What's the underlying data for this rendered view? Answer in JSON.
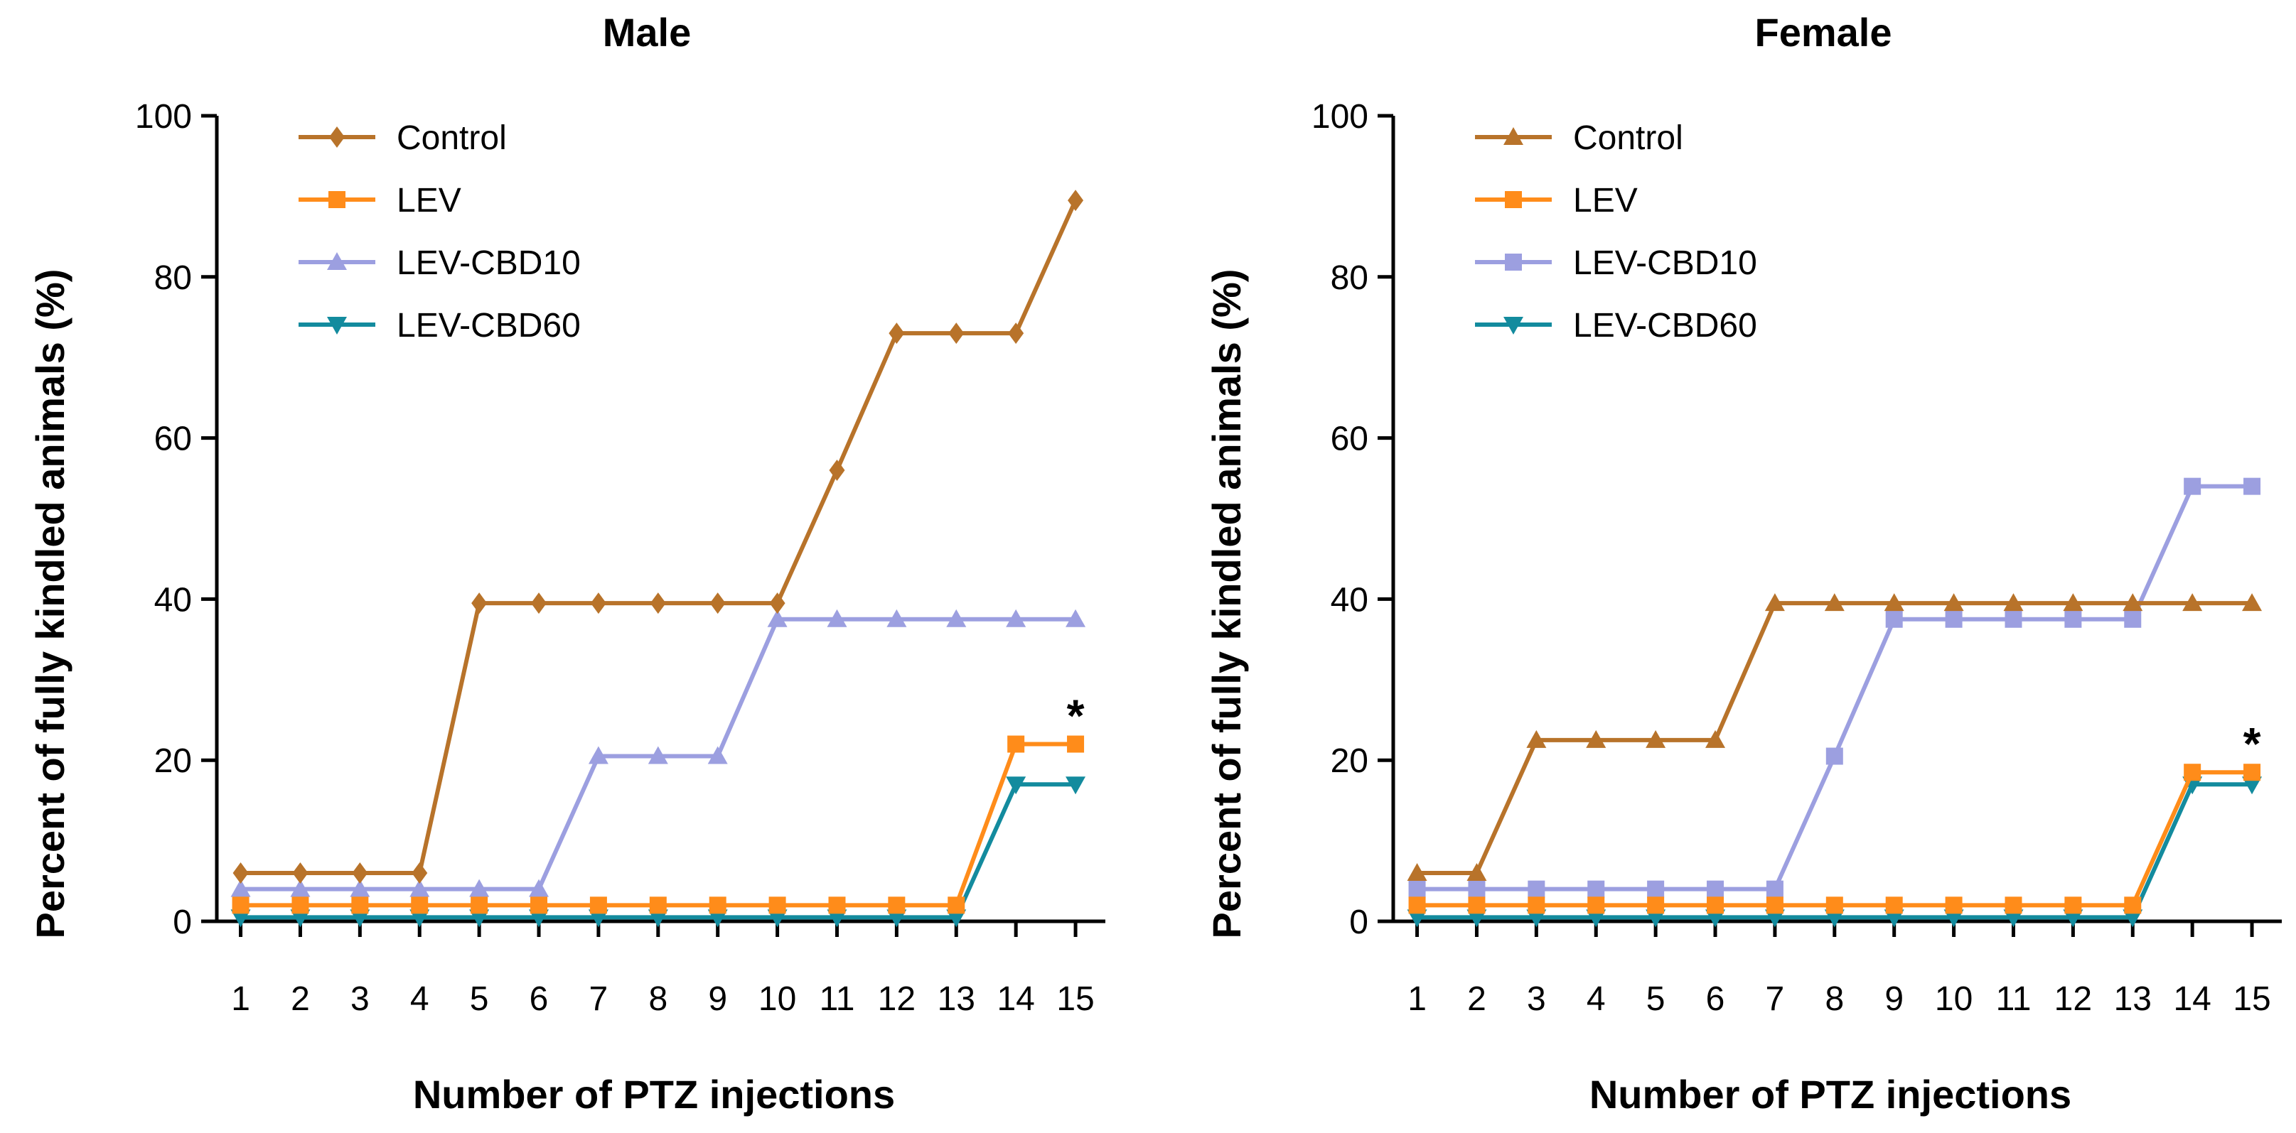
{
  "chart_data": [
    {
      "type": "line",
      "title": "Male",
      "xlabel": "Number of PTZ injections",
      "ylabel": "Percent of fully kindled animals (%)",
      "x": [
        1,
        2,
        3,
        4,
        5,
        6,
        7,
        8,
        9,
        10,
        11,
        12,
        13,
        14,
        15
      ],
      "ylim": [
        0,
        100
      ],
      "yticks": [
        0,
        20,
        40,
        60,
        80,
        100
      ],
      "legend_position": "top-left",
      "grid": false,
      "series": [
        {
          "name": "Control",
          "color": "#B8732A",
          "marker": "diamond",
          "values": [
            6,
            6,
            6,
            6,
            39.5,
            39.5,
            39.5,
            39.5,
            39.5,
            39.5,
            56,
            73,
            73,
            73,
            89.5
          ]
        },
        {
          "name": "LEV",
          "color": "#FF8C1A",
          "marker": "square",
          "values": [
            2,
            2,
            2,
            2,
            2,
            2,
            2,
            2,
            2,
            2,
            2,
            2,
            2,
            22,
            22
          ]
        },
        {
          "name": "LEV-CBD10",
          "color": "#9C9FE0",
          "marker": "triangle-up",
          "values": [
            4,
            4,
            4,
            4,
            4,
            4,
            20.5,
            20.5,
            20.5,
            37.5,
            37.5,
            37.5,
            37.5,
            37.5,
            37.5
          ]
        },
        {
          "name": "LEV-CBD60",
          "color": "#138B9E",
          "marker": "triangle-down",
          "values": [
            0.5,
            0.5,
            0.5,
            0.5,
            0.5,
            0.5,
            0.5,
            0.5,
            0.5,
            0.5,
            0.5,
            0.5,
            0.5,
            17,
            17
          ]
        }
      ],
      "annotations": [
        {
          "text": "*",
          "x": 15,
          "y": 22
        }
      ]
    },
    {
      "type": "line",
      "title": "Female",
      "xlabel": "Number of PTZ injections",
      "ylabel": "Percent of fully kindled animals (%)",
      "x": [
        1,
        2,
        3,
        4,
        5,
        6,
        7,
        8,
        9,
        10,
        11,
        12,
        13,
        14,
        15
      ],
      "ylim": [
        0,
        100
      ],
      "yticks": [
        0,
        20,
        40,
        60,
        80,
        100
      ],
      "legend_position": "top-left",
      "grid": false,
      "series": [
        {
          "name": "Control",
          "color": "#B8732A",
          "marker": "triangle-up",
          "values": [
            6,
            6,
            22.5,
            22.5,
            22.5,
            22.5,
            39.5,
            39.5,
            39.5,
            39.5,
            39.5,
            39.5,
            39.5,
            39.5,
            39.5
          ]
        },
        {
          "name": "LEV",
          "color": "#FF8C1A",
          "marker": "square",
          "values": [
            2,
            2,
            2,
            2,
            2,
            2,
            2,
            2,
            2,
            2,
            2,
            2,
            2,
            18.5,
            18.5
          ]
        },
        {
          "name": "LEV-CBD10",
          "color": "#9C9FE0",
          "marker": "square",
          "values": [
            4,
            4,
            4,
            4,
            4,
            4,
            4,
            20.5,
            37.5,
            37.5,
            37.5,
            37.5,
            37.5,
            54,
            54
          ]
        },
        {
          "name": "LEV-CBD60",
          "color": "#138B9E",
          "marker": "triangle-down",
          "values": [
            0.5,
            0.5,
            0.5,
            0.5,
            0.5,
            0.5,
            0.5,
            0.5,
            0.5,
            0.5,
            0.5,
            0.5,
            0.5,
            17,
            17
          ]
        }
      ],
      "annotations": [
        {
          "text": "*",
          "x": 15,
          "y": 18.5
        }
      ]
    }
  ]
}
